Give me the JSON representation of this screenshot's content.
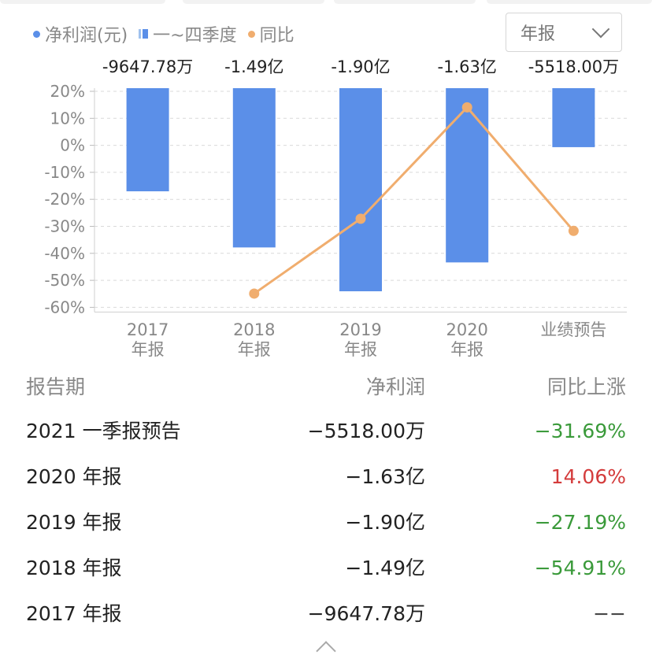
{
  "legend": {
    "net_profit": "净利润(元)",
    "quarters": "一~四季度",
    "yoy": "同比"
  },
  "period_select": {
    "value": "年报"
  },
  "colors": {
    "bar": "#5b8fe8",
    "line": "#f0ad6e",
    "down": "#3a9a3a",
    "up": "#d43c3c"
  },
  "chart_data": {
    "type": "bar",
    "categories": [
      "2017\n年报",
      "2018\n年报",
      "2019\n年报",
      "2020\n年报",
      "业绩预告"
    ],
    "series": [
      {
        "name": "净利润(元)",
        "type": "bar",
        "values": [
          -96477800,
          -149000000,
          -190000000,
          -163000000,
          -55180000
        ],
        "value_labels": [
          "-9647.78万",
          "-1.49亿",
          "-1.90亿",
          "-1.63亿",
          "-5518.00万"
        ]
      },
      {
        "name": "同比",
        "type": "line",
        "values": [
          null,
          -54.91,
          -27.19,
          14.06,
          -31.69
        ]
      }
    ],
    "y_ticks": [
      "20%",
      "10%",
      "0%",
      "-10%",
      "-20%",
      "-30%",
      "-40%",
      "-50%",
      "-60%"
    ],
    "ylim": [
      -60,
      20
    ],
    "grid": true
  },
  "table": {
    "headers": {
      "period": "报告期",
      "net_profit": "净利润",
      "yoy": "同比上涨"
    },
    "rows": [
      {
        "period": "2021 一季报预告",
        "net_profit": "−5518.00万",
        "yoy": "−31.69%",
        "trend": "down"
      },
      {
        "period": "2020 年报",
        "net_profit": "−1.63亿",
        "yoy": "14.06%",
        "trend": "up"
      },
      {
        "period": "2019 年报",
        "net_profit": "−1.90亿",
        "yoy": "−27.19%",
        "trend": "down"
      },
      {
        "period": "2018 年报",
        "net_profit": "−1.49亿",
        "yoy": "−54.91%",
        "trend": "down"
      },
      {
        "period": "2017 年报",
        "net_profit": "−9647.78万",
        "yoy": "−−",
        "trend": "flat"
      }
    ]
  },
  "collapse_icon": "chevron-up-icon"
}
